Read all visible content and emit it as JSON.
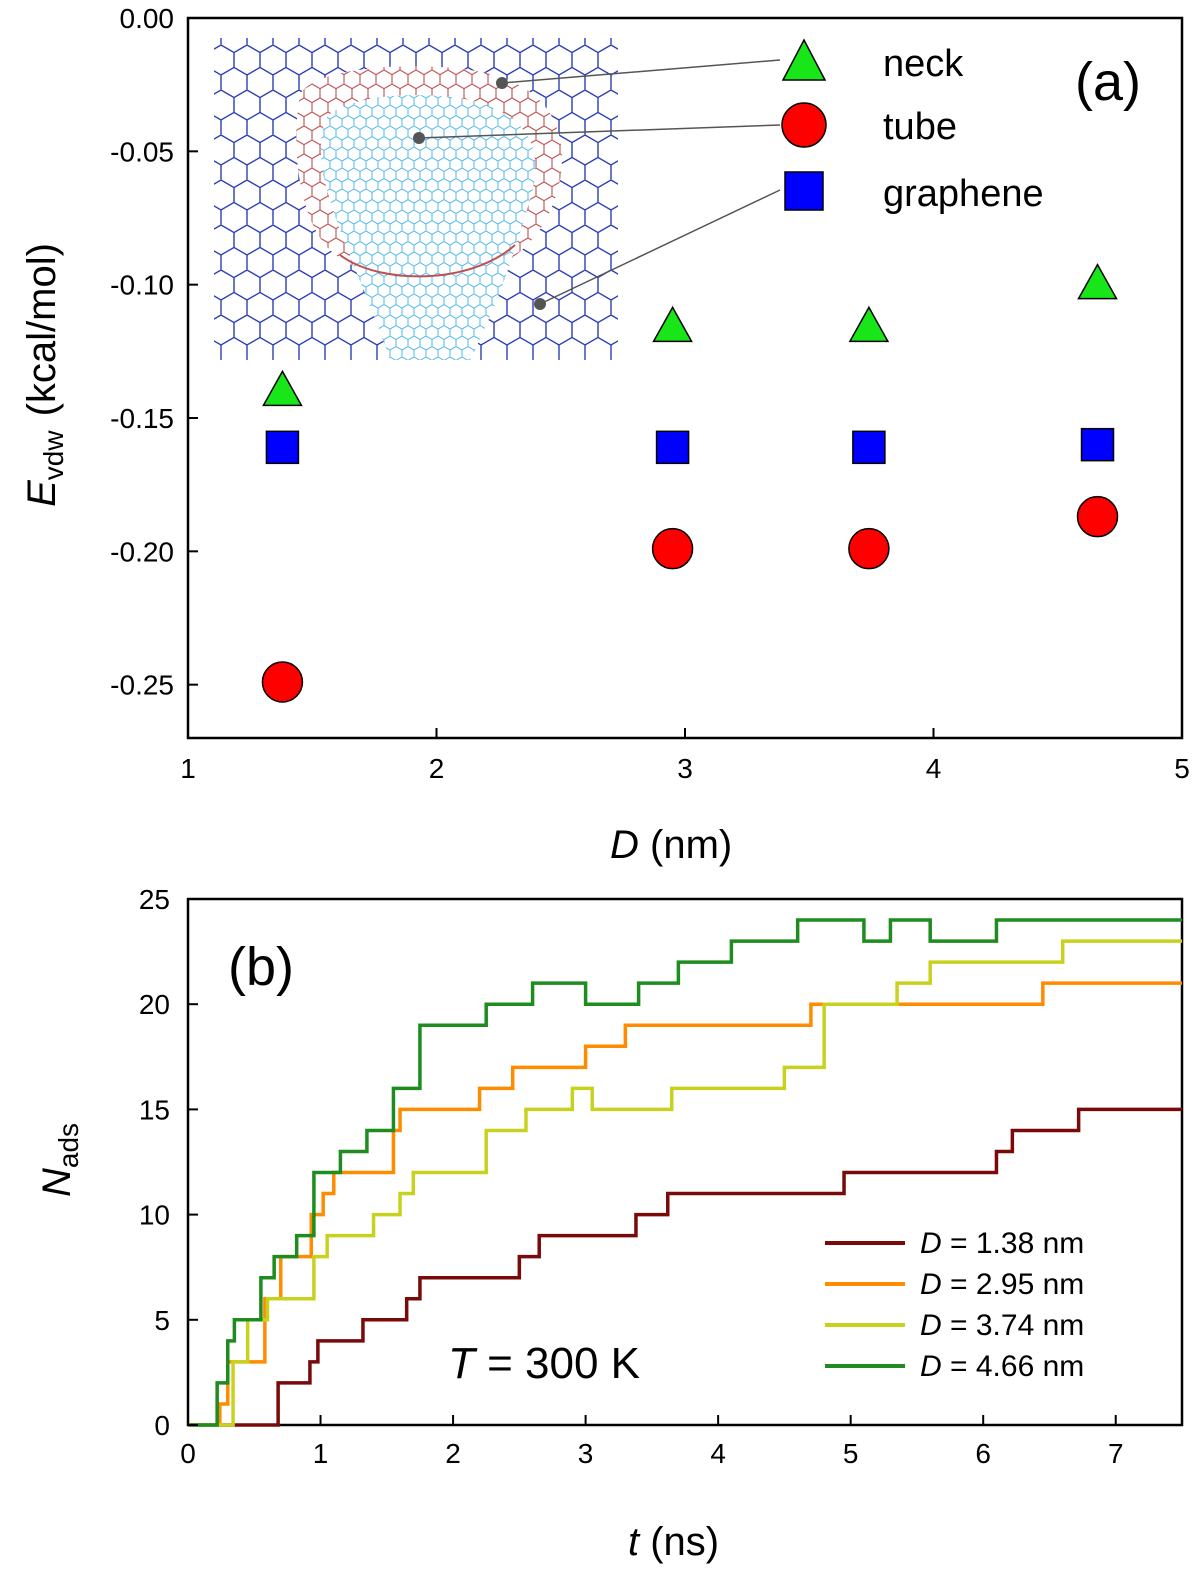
{
  "chart_data": [
    {
      "type": "scatter",
      "panel_label": "(a)",
      "xlabel_sym": "D",
      "xlabel_unit": " (nm)",
      "ylabel_sym": "E",
      "ylabel_sub": "vdw",
      "ylabel_unit": "(kcal/mol)",
      "xlim": [
        1,
        5
      ],
      "ylim": [
        -0.27,
        0.0
      ],
      "xticks": [
        "1",
        "2",
        "3",
        "4",
        "5"
      ],
      "yticks": [
        "0.00",
        "-0.05",
        "-0.10",
        "-0.15",
        "-0.20",
        "-0.25"
      ],
      "inset": "molecular structure: nanotube joined to graphene sheet through a neck",
      "series": [
        {
          "name": "neck",
          "marker": "triangle",
          "color": "#19e619",
          "x": [
            1.38,
            2.95,
            3.74,
            4.66
          ],
          "y": [
            -0.14,
            -0.116,
            -0.116,
            -0.1
          ]
        },
        {
          "name": "tube",
          "marker": "circle",
          "color": "#ff0000",
          "x": [
            1.38,
            2.95,
            3.74,
            4.66
          ],
          "y": [
            -0.249,
            -0.199,
            -0.199,
            -0.187
          ]
        },
        {
          "name": "graphene",
          "marker": "square",
          "color": "#0000ff",
          "x": [
            1.38,
            2.95,
            3.74,
            4.66
          ],
          "y": [
            -0.161,
            -0.161,
            -0.161,
            -0.16
          ]
        }
      ]
    },
    {
      "type": "line",
      "step": true,
      "panel_label": "(b)",
      "annotation_sym": "T",
      "annotation_rest": " = 300 K",
      "xlabel_sym": "t",
      "xlabel_unit": " (ns)",
      "ylabel_sym": "N",
      "ylabel_sub": "ads",
      "xlim": [
        0,
        7.5
      ],
      "ylim": [
        0,
        25
      ],
      "xticks": [
        "0",
        "1",
        "2",
        "3",
        "4",
        "5",
        "6",
        "7"
      ],
      "yticks": [
        "0",
        "5",
        "10",
        "15",
        "20",
        "25"
      ],
      "legend_position": "bottom-right",
      "series": [
        {
          "name_sym": "D",
          "name_rest": " = 1.38 nm",
          "color": "#7a0a0a",
          "t": [
            0,
            0.62,
            0.68,
            0.92,
            0.98,
            1.18,
            1.32,
            1.58,
            1.65,
            1.75,
            2.45,
            2.5,
            2.65,
            3.25,
            3.38,
            3.62,
            4.95,
            6.1,
            6.22,
            6.72,
            7.5
          ],
          "n": [
            0,
            0,
            2,
            3,
            4,
            4,
            5,
            5,
            6,
            7,
            7,
            8,
            9,
            9,
            10,
            11,
            12,
            13,
            14,
            15,
            15
          ]
        },
        {
          "name_sym": "D",
          "name_rest": " = 2.95 nm",
          "color": "#ff8c00",
          "t": [
            0,
            0.2,
            0.24,
            0.3,
            0.4,
            0.58,
            0.7,
            0.75,
            0.93,
            1.02,
            1.1,
            1.2,
            1.55,
            1.6,
            2.0,
            2.2,
            2.45,
            2.7,
            3.0,
            3.3,
            3.55,
            3.65,
            4.3,
            4.7,
            5.0,
            5.8,
            6.45,
            7.5
          ],
          "n": [
            0,
            0,
            1,
            3,
            3,
            6,
            8,
            8,
            10,
            11,
            12,
            12,
            14,
            15,
            15,
            16,
            17,
            17,
            18,
            19,
            19,
            19,
            19,
            20,
            20,
            20,
            21,
            21
          ]
        },
        {
          "name_sym": "D",
          "name_rest": " = 3.74 nm",
          "color": "#c8d21e",
          "t": [
            0,
            0.28,
            0.34,
            0.45,
            0.6,
            0.8,
            0.95,
            1.05,
            1.15,
            1.4,
            1.6,
            1.7,
            2.25,
            2.55,
            2.7,
            2.9,
            3.05,
            3.65,
            4.0,
            4.5,
            4.8,
            5.25,
            5.35,
            5.6,
            6.6,
            6.7,
            7.5
          ],
          "n": [
            0,
            0,
            3,
            5,
            6,
            6,
            8,
            9,
            9,
            10,
            11,
            12,
            14,
            15,
            15,
            16,
            15,
            16,
            16,
            17,
            20,
            20,
            21,
            22,
            23,
            23,
            23
          ]
        },
        {
          "name_sym": "D",
          "name_rest": " = 4.66 nm",
          "color": "#1e8c1e",
          "t": [
            0,
            0.15,
            0.22,
            0.3,
            0.35,
            0.55,
            0.65,
            0.82,
            0.95,
            1.15,
            1.35,
            1.55,
            1.75,
            1.95,
            2.25,
            2.6,
            3.0,
            3.4,
            3.7,
            4.1,
            4.6,
            5.1,
            5.3,
            5.6,
            6.1,
            6.25,
            6.6,
            7.5
          ],
          "n": [
            0,
            0,
            2,
            4,
            5,
            7,
            8,
            9,
            12,
            13,
            14,
            16,
            19,
            19,
            20,
            21,
            20,
            21,
            22,
            23,
            24,
            23,
            24,
            23,
            24,
            24,
            24,
            24
          ]
        }
      ]
    }
  ]
}
